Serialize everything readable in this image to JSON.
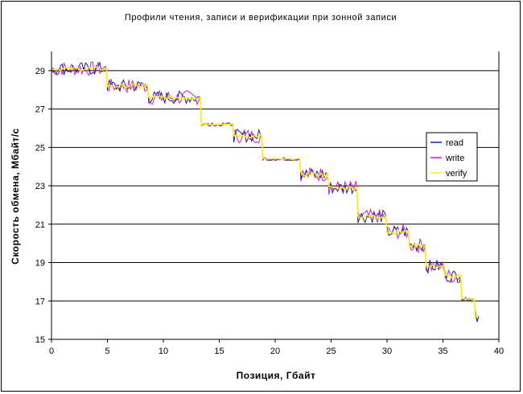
{
  "chart_data": {
    "type": "line",
    "title": "Профили чтения, записи и верификации при зонной записи",
    "xlabel": "Позиция, Гбайт",
    "ylabel": "Скорость обмена, Мбайт/с",
    "xlim": [
      0,
      40
    ],
    "ylim": [
      15,
      30
    ],
    "xticks": [
      0,
      5,
      10,
      15,
      20,
      25,
      30,
      35,
      40
    ],
    "yticks": [
      15,
      17,
      19,
      21,
      23,
      25,
      27,
      29
    ],
    "grid": {
      "horizontal": true,
      "vertical": false
    },
    "legend_position": "right",
    "zones": [
      {
        "x": [
          0.0,
          4.9
        ],
        "y": 29.1
      },
      {
        "x": [
          5.0,
          8.6
        ],
        "y": 28.2
      },
      {
        "x": [
          8.7,
          13.3
        ],
        "y": 27.6
      },
      {
        "x": [
          13.4,
          16.2
        ],
        "y": 26.2
      },
      {
        "x": [
          16.3,
          18.8
        ],
        "y": 25.6
      },
      {
        "x": [
          18.9,
          22.2
        ],
        "y": 24.4
      },
      {
        "x": [
          22.3,
          24.7
        ],
        "y": 23.6
      },
      {
        "x": [
          24.8,
          27.3
        ],
        "y": 22.9
      },
      {
        "x": [
          27.4,
          29.9
        ],
        "y": 21.4
      },
      {
        "x": [
          30.0,
          31.9
        ],
        "y": 20.6
      },
      {
        "x": [
          32.0,
          33.4
        ],
        "y": 19.9
      },
      {
        "x": [
          33.5,
          35.1
        ],
        "y": 18.8
      },
      {
        "x": [
          35.2,
          36.6
        ],
        "y": 18.3
      },
      {
        "x": [
          36.7,
          37.8
        ],
        "y": 17.1
      },
      {
        "x": [
          37.9,
          38.2
        ],
        "y": 16.2
      }
    ],
    "series": [
      {
        "name": "read",
        "color": "#1c1cb4"
      },
      {
        "name": "write",
        "color": "#d21ed2"
      },
      {
        "name": "verify",
        "color": "#ffee00"
      }
    ]
  }
}
